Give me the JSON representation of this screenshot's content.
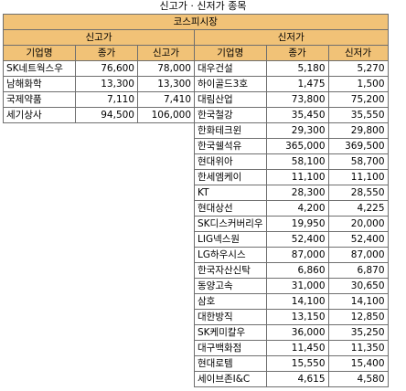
{
  "page_title": "신고가 · 신저가 종목",
  "market": "코스피시장",
  "highs": {
    "section": "신고가",
    "headers": [
      "기업명",
      "종가",
      "신고가"
    ],
    "rows": [
      [
        "SK네트웍스우",
        "76,600",
        "78,000"
      ],
      [
        "남해화학",
        "13,300",
        "13,300"
      ],
      [
        "국제약품",
        "7,110",
        "7,410"
      ],
      [
        "세기상사",
        "94,500",
        "106,000"
      ]
    ]
  },
  "lows": {
    "section": "신저가",
    "headers": [
      "기업명",
      "종가",
      "신저가"
    ],
    "rows": [
      [
        "대우건설",
        "5,180",
        "5,270"
      ],
      [
        "하이골드3호",
        "1,475",
        "1,500"
      ],
      [
        "대림산업",
        "73,800",
        "75,200"
      ],
      [
        "한국철강",
        "35,450",
        "35,550"
      ],
      [
        "한화테크윈",
        "29,300",
        "29,800"
      ],
      [
        "한국쉘석유",
        "365,000",
        "369,500"
      ],
      [
        "현대위아",
        "58,100",
        "58,700"
      ],
      [
        "한세엠케이",
        "11,100",
        "11,100"
      ],
      [
        "KT",
        "28,300",
        "28,550"
      ],
      [
        "현대상선",
        "4,200",
        "4,225"
      ],
      [
        "SK디스커버리우",
        "19,950",
        "20,000"
      ],
      [
        "LIG넥스원",
        "52,400",
        "52,400"
      ],
      [
        "LG하우시스",
        "87,000",
        "87,000"
      ],
      [
        "한국자산신탁",
        "6,860",
        "6,870"
      ],
      [
        "동양고속",
        "31,000",
        "30,650"
      ],
      [
        "삼호",
        "14,100",
        "14,100"
      ],
      [
        "대한방직",
        "13,150",
        "12,850"
      ],
      [
        "SK케미칼우",
        "36,000",
        "35,250"
      ],
      [
        "대구백화점",
        "11,450",
        "11,350"
      ],
      [
        "현대로템",
        "15,550",
        "15,400"
      ],
      [
        "세이브존I&C",
        "4,615",
        "4,580"
      ]
    ]
  }
}
